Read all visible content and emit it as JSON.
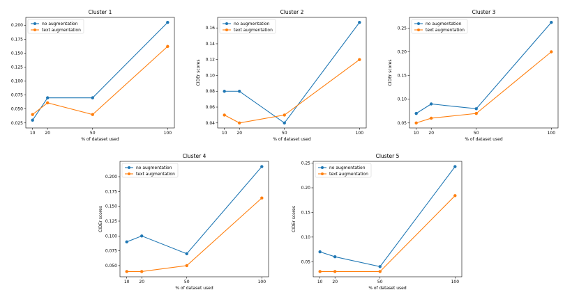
{
  "colors": {
    "series_0": "#1f77b4",
    "series_1": "#ff7f0e"
  },
  "chart_data": [
    {
      "type": "line",
      "title": "Cluster 1",
      "xlabel": "% of dataset used",
      "ylabel": "",
      "x": [
        10,
        20,
        50,
        100
      ],
      "xticks": [
        "10",
        "20",
        "50",
        "100"
      ],
      "ylim": [
        0.025,
        0.205
      ],
      "yticks": [
        "0.025",
        "0.050",
        "0.075",
        "0.100",
        "0.125",
        "0.150",
        "0.175",
        "0.200"
      ],
      "legend": "top-left",
      "series": [
        {
          "name": "no augmentation",
          "values": [
            0.03,
            0.07,
            0.07,
            0.205
          ]
        },
        {
          "name": "text augmentation",
          "values": [
            0.04,
            0.061,
            0.04,
            0.162
          ]
        }
      ]
    },
    {
      "type": "line",
      "title": "Cluster 2",
      "xlabel": "% of dataset used",
      "ylabel": "CIDEr scores",
      "x": [
        10,
        20,
        50,
        100
      ],
      "xticks": [
        "10",
        "20",
        "50",
        "100"
      ],
      "ylim": [
        0.04,
        0.167
      ],
      "yticks": [
        "0.04",
        "0.06",
        "0.08",
        "0.10",
        "0.12",
        "0.14",
        "0.16"
      ],
      "legend": "top-left",
      "series": [
        {
          "name": "no augmentation",
          "values": [
            0.08,
            0.08,
            0.04,
            0.167
          ]
        },
        {
          "name": "text augmentation",
          "values": [
            0.05,
            0.04,
            0.05,
            0.12
          ]
        }
      ]
    },
    {
      "type": "line",
      "title": "Cluster 3",
      "xlabel": "% of dataset used",
      "ylabel": "CIDEr scores",
      "x": [
        10,
        20,
        50,
        100
      ],
      "xticks": [
        "10",
        "20",
        "50",
        "100"
      ],
      "ylim": [
        0.05,
        0.262
      ],
      "yticks": [
        "0.05",
        "0.10",
        "0.15",
        "0.20",
        "0.25"
      ],
      "legend": "top-left",
      "series": [
        {
          "name": "no augmentation",
          "values": [
            0.07,
            0.09,
            0.08,
            0.262
          ]
        },
        {
          "name": "text augmentation",
          "values": [
            0.05,
            0.06,
            0.07,
            0.2
          ]
        }
      ]
    },
    {
      "type": "line",
      "title": "Cluster 4",
      "xlabel": "% of dataset used",
      "ylabel": "CIDEr scores",
      "x": [
        10,
        20,
        50,
        100
      ],
      "xticks": [
        "10",
        "20",
        "50",
        "100"
      ],
      "ylim": [
        0.04,
        0.217
      ],
      "yticks": [
        "0.050",
        "0.075",
        "0.100",
        "0.125",
        "0.150",
        "0.175",
        "0.200"
      ],
      "legend": "top-left",
      "series": [
        {
          "name": "no augmentation",
          "values": [
            0.09,
            0.1,
            0.07,
            0.217
          ]
        },
        {
          "name": "text augmentation",
          "values": [
            0.04,
            0.04,
            0.05,
            0.164
          ]
        }
      ]
    },
    {
      "type": "line",
      "title": "Cluster 5",
      "xlabel": "% of dataset used",
      "ylabel": "CIDEr scores",
      "x": [
        10,
        20,
        50,
        100
      ],
      "xticks": [
        "10",
        "20",
        "50",
        "100"
      ],
      "ylim": [
        0.03,
        0.243
      ],
      "yticks": [
        "0.05",
        "0.10",
        "0.15",
        "0.20",
        "0.25"
      ],
      "legend": "top-left",
      "series": [
        {
          "name": "no augmentation",
          "values": [
            0.07,
            0.06,
            0.04,
            0.243
          ]
        },
        {
          "name": "text augmentation",
          "values": [
            0.03,
            0.03,
            0.03,
            0.184
          ]
        }
      ]
    }
  ]
}
